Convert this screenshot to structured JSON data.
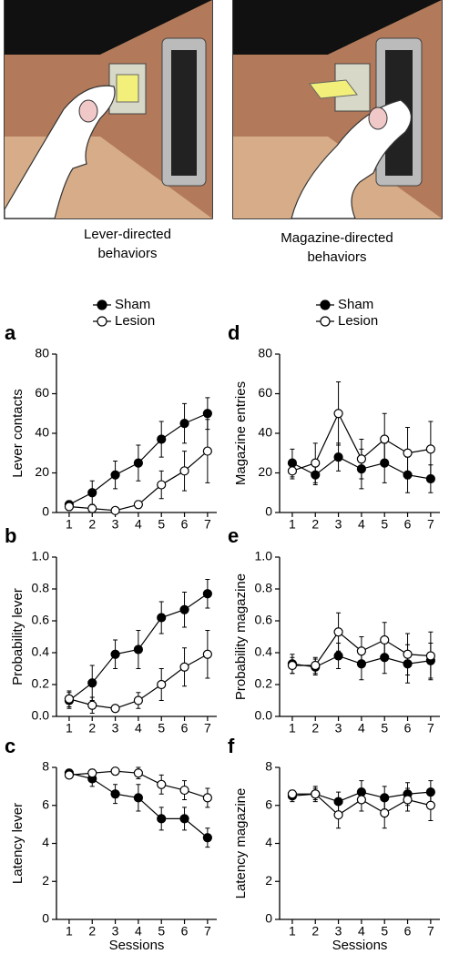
{
  "illustrations": [
    {
      "caption_lines": [
        "Lever-directed",
        "behaviors"
      ]
    },
    {
      "caption_lines": [
        "Magazine-directed",
        "behaviors"
      ]
    }
  ],
  "chart_data": [
    {
      "type": "line",
      "panel": "a",
      "y_label": "Lever contacts",
      "x": [
        1,
        2,
        3,
        4,
        5,
        6,
        7
      ],
      "xlim": [
        0.45,
        7.4
      ],
      "xticks": [
        1,
        2,
        3,
        4,
        5,
        6,
        7
      ],
      "ylim": [
        0,
        80
      ],
      "yticks": [
        0,
        20,
        40,
        60,
        80
      ],
      "series": [
        {
          "name": "Sham",
          "color": "#000000",
          "values": [
            4,
            10,
            19,
            25,
            37,
            45,
            50
          ],
          "errors": [
            2,
            6,
            7,
            9,
            9,
            10,
            8
          ]
        },
        {
          "name": "Lesion",
          "color": "#ffffff",
          "values": [
            3,
            2,
            1,
            4,
            14,
            21,
            31
          ],
          "errors": [
            2,
            2,
            1,
            2,
            7,
            10,
            16
          ]
        }
      ]
    },
    {
      "type": "line",
      "panel": "b",
      "y_label": "Probability lever",
      "x": [
        1,
        2,
        3,
        4,
        5,
        6,
        7
      ],
      "xlim": [
        0.45,
        7.4
      ],
      "xticks": [
        1,
        2,
        3,
        4,
        5,
        6,
        7
      ],
      "ylim": [
        0,
        1
      ],
      "yticks": [
        {
          "value": 0,
          "label": "0.0"
        },
        {
          "value": 0.2,
          "label": "0.2"
        },
        {
          "value": 0.4,
          "label": "0.4"
        },
        {
          "value": 0.6,
          "label": "0.6"
        },
        {
          "value": 0.8,
          "label": "0.8"
        },
        {
          "value": 1,
          "label": "1.0"
        }
      ],
      "series": [
        {
          "color": "#000000",
          "values": [
            0.1,
            0.21,
            0.39,
            0.42,
            0.62,
            0.67,
            0.77
          ],
          "errors": [
            0.05,
            0.11,
            0.09,
            0.12,
            0.1,
            0.11,
            0.09
          ]
        },
        {
          "color": "#ffffff",
          "values": [
            0.11,
            0.07,
            0.05,
            0.1,
            0.2,
            0.31,
            0.39
          ],
          "errors": [
            0.05,
            0.05,
            0.02,
            0.05,
            0.1,
            0.12,
            0.15
          ]
        }
      ]
    },
    {
      "type": "line",
      "panel": "c",
      "y_label": "Latency lever",
      "x_label": "Sessions",
      "x": [
        1,
        2,
        3,
        4,
        5,
        6,
        7
      ],
      "xlim": [
        0.45,
        7.4
      ],
      "xticks": [
        1,
        2,
        3,
        4,
        5,
        6,
        7
      ],
      "ylim": [
        0,
        8
      ],
      "yticks": [
        0,
        2,
        4,
        6,
        8
      ],
      "series": [
        {
          "color": "#000000",
          "values": [
            7.7,
            7.4,
            6.6,
            6.4,
            5.3,
            5.3,
            4.3
          ],
          "errors": [
            0.2,
            0.4,
            0.5,
            0.7,
            0.6,
            0.6,
            0.5
          ]
        },
        {
          "color": "#ffffff",
          "values": [
            7.6,
            7.7,
            7.8,
            7.7,
            7.1,
            6.8,
            6.4
          ],
          "errors": [
            0.2,
            0.2,
            0.2,
            0.3,
            0.5,
            0.5,
            0.5
          ]
        }
      ]
    },
    {
      "type": "line",
      "panel": "d",
      "y_label": "Magazine entries",
      "x": [
        1,
        2,
        3,
        4,
        5,
        6,
        7
      ],
      "xlim": [
        0.45,
        7.4
      ],
      "xticks": [
        1,
        2,
        3,
        4,
        5,
        6,
        7
      ],
      "ylim": [
        0,
        80
      ],
      "yticks": [
        0,
        20,
        40,
        60,
        80
      ],
      "series": [
        {
          "name": "Sham",
          "color": "#000000",
          "values": [
            25,
            19,
            28,
            22,
            25,
            19,
            17
          ],
          "errors": [
            7,
            5,
            7,
            10,
            10,
            9,
            7
          ]
        },
        {
          "name": "Lesion",
          "color": "#ffffff",
          "values": [
            21,
            25,
            50,
            27,
            37,
            30,
            32
          ],
          "errors": [
            4,
            10,
            16,
            10,
            13,
            13,
            14
          ]
        }
      ]
    },
    {
      "type": "line",
      "panel": "e",
      "y_label": "Probability magazine",
      "x": [
        1,
        2,
        3,
        4,
        5,
        6,
        7
      ],
      "xlim": [
        0.45,
        7.4
      ],
      "xticks": [
        1,
        2,
        3,
        4,
        5,
        6,
        7
      ],
      "ylim": [
        0,
        1
      ],
      "yticks": [
        {
          "value": 0,
          "label": "0.0"
        },
        {
          "value": 0.2,
          "label": "0.2"
        },
        {
          "value": 0.4,
          "label": "0.4"
        },
        {
          "value": 0.6,
          "label": "0.6"
        },
        {
          "value": 0.8,
          "label": "0.8"
        },
        {
          "value": 1,
          "label": "1.0"
        }
      ],
      "series": [
        {
          "color": "#000000",
          "values": [
            0.33,
            0.31,
            0.38,
            0.33,
            0.37,
            0.33,
            0.35
          ],
          "errors": [
            0.06,
            0.05,
            0.08,
            0.1,
            0.1,
            0.12,
            0.11
          ]
        },
        {
          "color": "#ffffff",
          "values": [
            0.32,
            0.32,
            0.53,
            0.41,
            0.48,
            0.39,
            0.38
          ],
          "errors": [
            0.05,
            0.05,
            0.12,
            0.09,
            0.11,
            0.13,
            0.15
          ]
        }
      ]
    },
    {
      "type": "line",
      "panel": "f",
      "y_label": "Latency magazine",
      "x_label": "Sessions",
      "x": [
        1,
        2,
        3,
        4,
        5,
        6,
        7
      ],
      "xlim": [
        0.45,
        7.4
      ],
      "xticks": [
        1,
        2,
        3,
        4,
        5,
        6,
        7
      ],
      "ylim": [
        0,
        8
      ],
      "yticks": [
        0,
        2,
        4,
        6,
        8
      ],
      "series": [
        {
          "color": "#000000",
          "values": [
            6.5,
            6.6,
            6.2,
            6.7,
            6.4,
            6.6,
            6.7
          ],
          "errors": [
            0.3,
            0.4,
            0.5,
            0.6,
            0.6,
            0.6,
            0.6
          ]
        },
        {
          "color": "#ffffff",
          "values": [
            6.6,
            6.6,
            5.5,
            6.3,
            5.6,
            6.3,
            6.0
          ],
          "errors": [
            0.2,
            0.3,
            0.7,
            0.6,
            0.8,
            0.6,
            0.8
          ]
        }
      ]
    }
  ]
}
